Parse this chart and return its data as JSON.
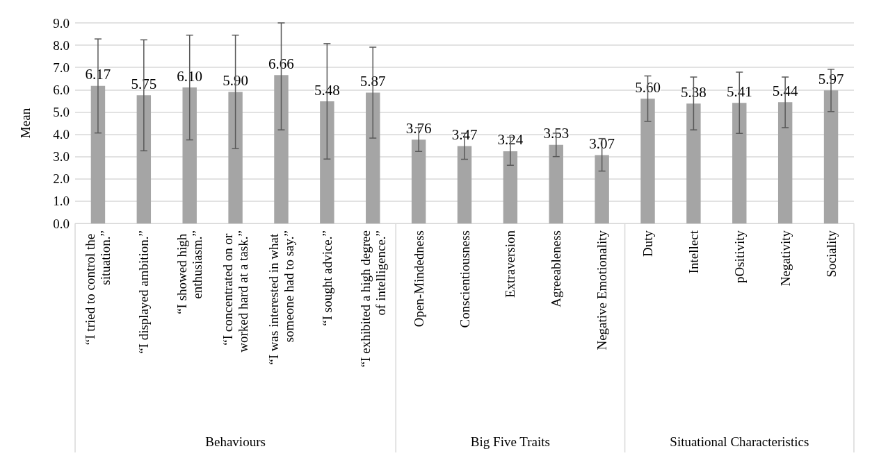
{
  "chart_data": {
    "type": "bar",
    "ylabel": "Mean",
    "categories": [
      "“I tried to control the situation.”",
      "“I displayed ambition.”",
      "“I showed high enthusiasm.”",
      "“I concentrated on or worked hard at a task.”",
      "“I was interested in what someone had to say.”",
      "“I sought advice.”",
      "“I exhibited a high degree of intelligence.”",
      "Open-Mindedness",
      "Conscientiousness",
      "Extraversion",
      "Agreeableness",
      "Negative Emotionality",
      "Duty",
      "Intellect",
      "pOsitivity",
      "Negativity",
      "Sociality"
    ],
    "series": [
      {
        "color": "#a5a5a5",
        "values": [
          6.17,
          5.75,
          6.1,
          5.9,
          6.66,
          5.48,
          5.87,
          3.76,
          3.47,
          3.24,
          3.53,
          3.07,
          5.6,
          5.38,
          5.41,
          5.44,
          5.97
        ],
        "value_labels": [
          "6.17",
          "5.75",
          "6.10",
          "5.90",
          "6.66",
          "5.48",
          "5.87",
          "3.76",
          "3.47",
          "3.24",
          "3.53",
          "3.07",
          "5.60",
          "5.38",
          "5.41",
          "5.44",
          "5.97"
        ],
        "errors": [
          [
            4.06,
            8.28
          ],
          [
            3.26,
            8.24
          ],
          [
            3.75,
            8.45
          ],
          [
            3.36,
            8.45
          ],
          [
            4.2,
            9.0
          ],
          [
            2.89,
            8.07
          ],
          [
            3.83,
            7.91
          ],
          [
            3.23,
            4.3
          ],
          [
            2.88,
            4.05
          ],
          [
            2.61,
            3.87
          ],
          [
            3.0,
            4.05
          ],
          [
            2.35,
            3.81
          ],
          [
            4.58,
            6.62
          ],
          [
            4.2,
            6.57
          ],
          [
            4.04,
            6.79
          ],
          [
            4.3,
            6.57
          ],
          [
            5.02,
            6.92
          ]
        ]
      }
    ],
    "ylim": [
      0,
      9
    ],
    "yticks": [
      {
        "value": 0,
        "label": "0.0"
      },
      {
        "value": 1,
        "label": "1.0"
      },
      {
        "value": 2,
        "label": "2.0"
      },
      {
        "value": 3,
        "label": "3.0"
      },
      {
        "value": 4,
        "label": "4.0"
      },
      {
        "value": 5,
        "label": "5.0"
      },
      {
        "value": 6,
        "label": "6.0"
      },
      {
        "value": 7,
        "label": "7.0"
      },
      {
        "value": 8,
        "label": "8.0"
      },
      {
        "value": 9,
        "label": "9.0"
      }
    ],
    "grid": "y",
    "annotations": [
      "Behaviours",
      "Big Five Traits",
      "Situational Characteristics"
    ]
  }
}
